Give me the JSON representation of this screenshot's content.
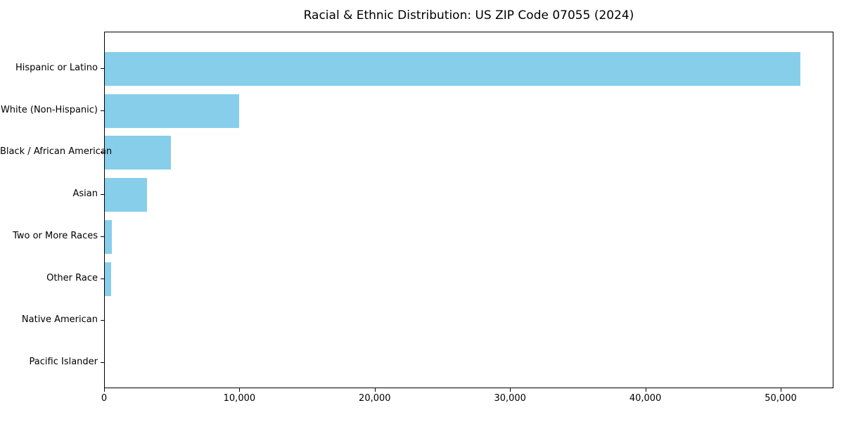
{
  "figure": {
    "background_color": "#ffffff",
    "axis_color": "#000000",
    "text_color": "#000000"
  },
  "chart_data": {
    "type": "bar",
    "orientation": "horizontal",
    "title": "Racial & Ethnic Distribution: US ZIP Code 07055 (2024)",
    "xlabel": "",
    "ylabel": "",
    "categories": [
      "Hispanic or Latino",
      "White (Non-Hispanic)",
      "Black / African American",
      "Asian",
      "Two or More Races",
      "Other Race",
      "Native American",
      "Pacific Islander"
    ],
    "values": [
      51400,
      9900,
      4900,
      3100,
      540,
      450,
      0,
      0
    ],
    "bar_color": "#87CEEB",
    "xlim": [
      0,
      53900
    ],
    "xticks": [
      0,
      10000,
      20000,
      30000,
      40000,
      50000
    ],
    "xtick_labels": [
      "0",
      "10,000",
      "20,000",
      "30,000",
      "40,000",
      "50,000"
    ],
    "grid": false,
    "legend_position": "none"
  }
}
